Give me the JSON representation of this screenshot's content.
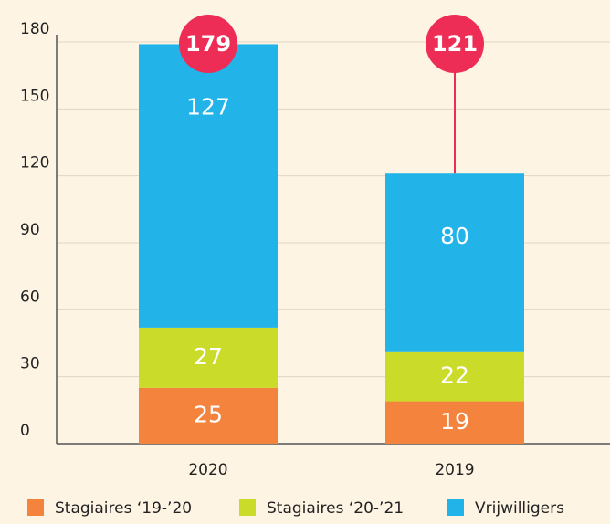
{
  "chart_data": {
    "type": "stacked-bar",
    "categories": [
      "2020",
      "2019"
    ],
    "series": [
      {
        "name": "Stagiaires ‘19-’20",
        "color": "#f4843d",
        "values": [
          25,
          19
        ]
      },
      {
        "name": "Stagiaires ‘20-’21",
        "color": "#cbdb2a",
        "values": [
          27,
          22
        ]
      },
      {
        "name": "Vrijwilligers",
        "color": "#22b4e9",
        "values": [
          127,
          80
        ]
      }
    ],
    "totals": [
      179,
      121
    ],
    "total_color": "#ee2d56",
    "ylim": [
      0,
      180
    ],
    "yticks": [
      0,
      30,
      60,
      90,
      120,
      150,
      180
    ],
    "grid": true,
    "legend": "bottom"
  }
}
